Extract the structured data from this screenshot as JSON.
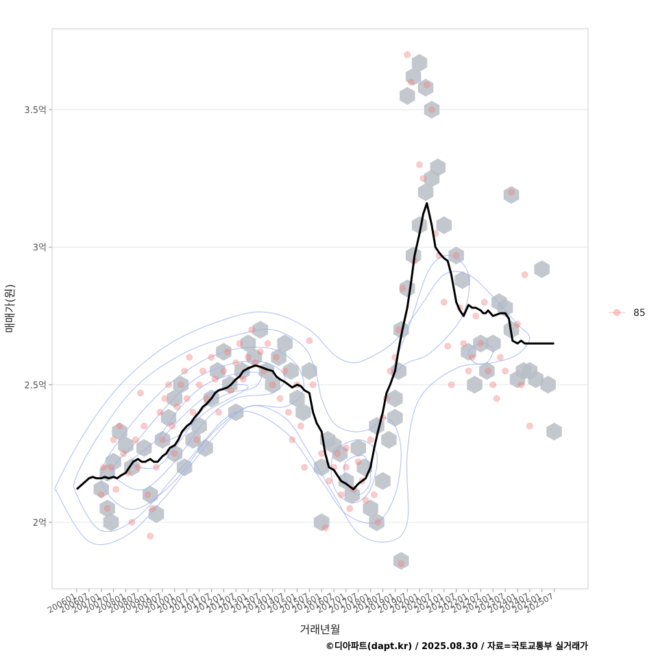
{
  "chart_data": {
    "type": "scatter",
    "xlabel": "거래년월",
    "ylabel": "매매가(원)",
    "caption": "©디아파트(dapt.kr) / 2025.08.30 / 자료=국토교통부 실거래가",
    "ylim": [
      1.77,
      3.8
    ],
    "y_ticks": [
      {
        "value": 2.0,
        "label": "2억"
      },
      {
        "value": 2.5,
        "label": "2.5억"
      },
      {
        "value": 3.0,
        "label": "3억"
      },
      {
        "value": 3.5,
        "label": "3.5억"
      }
    ],
    "x_ticks": [
      "200601",
      "200607",
      "200701",
      "200707",
      "200801",
      "200807",
      "200901",
      "200907",
      "201001",
      "201007",
      "201101",
      "201107",
      "201201",
      "201207",
      "201301",
      "201307",
      "201401",
      "201407",
      "201501",
      "201507",
      "201601",
      "201607",
      "201701",
      "201707",
      "201801",
      "201807",
      "201901",
      "201907",
      "202001",
      "202007",
      "202101",
      "202107",
      "202201",
      "202207",
      "202301",
      "202307",
      "202401",
      "202407",
      "202501",
      "202507"
    ],
    "legend": [
      {
        "label": "85",
        "color": "#f08080"
      }
    ],
    "trend_line": {
      "name": "moving average",
      "x": [
        0,
        1.0,
        1.3,
        1.6,
        2.0,
        2.3,
        2.6,
        3.0,
        3.3,
        3.6,
        4.0,
        4.3,
        4.6,
        5.0,
        5.3,
        5.6,
        6.0,
        6.3,
        6.6,
        7.0,
        7.3,
        7.6,
        8.0,
        8.3,
        8.6,
        9.0,
        9.3,
        9.6,
        10.0,
        10.3,
        10.6,
        11.0,
        11.3,
        11.6,
        12.0,
        12.3,
        12.6,
        13.0,
        13.3,
        13.6,
        14.0,
        14.3,
        14.6,
        15.0,
        15.3,
        15.6,
        16.0,
        16.3,
        16.6,
        17.0,
        17.3,
        17.6,
        18.0,
        18.3,
        18.6,
        19.0,
        19.3,
        19.6,
        20.0,
        20.3,
        20.6,
        21.0,
        21.3,
        21.6,
        22.0,
        22.3,
        22.6,
        23.0,
        23.3,
        23.6,
        24.0,
        24.3,
        24.6,
        25.0,
        25.3,
        25.6,
        26.0,
        26.3,
        26.6,
        27.0,
        27.3,
        27.6,
        28.0,
        28.3,
        28.6,
        29.0,
        29.3,
        29.6,
        30.0,
        30.3,
        30.6,
        31.0,
        31.3,
        31.6,
        32.0,
        32.3,
        32.6,
        33.0,
        33.2,
        33.4,
        33.6,
        33.8,
        34.0,
        34.3,
        34.6,
        35.0,
        35.3,
        35.6,
        36.0,
        36.3,
        36.6,
        37.0,
        37.3,
        37.6,
        38.0,
        38.3,
        38.6,
        39.0
      ],
      "y": [
        2.12,
        2.16,
        2.165,
        2.16,
        2.16,
        2.165,
        2.16,
        2.165,
        2.16,
        2.17,
        2.18,
        2.2,
        2.22,
        2.23,
        2.22,
        2.22,
        2.23,
        2.22,
        2.22,
        2.24,
        2.25,
        2.27,
        2.28,
        2.3,
        2.33,
        2.35,
        2.36,
        2.38,
        2.4,
        2.42,
        2.43,
        2.45,
        2.47,
        2.48,
        2.485,
        2.49,
        2.5,
        2.52,
        2.53,
        2.55,
        2.56,
        2.565,
        2.57,
        2.565,
        2.56,
        2.555,
        2.55,
        2.53,
        2.52,
        2.51,
        2.5,
        2.49,
        2.5,
        2.495,
        2.48,
        2.47,
        2.4,
        2.36,
        2.33,
        2.25,
        2.2,
        2.19,
        2.17,
        2.15,
        2.14,
        2.13,
        2.12,
        2.14,
        2.15,
        2.16,
        2.2,
        2.27,
        2.33,
        2.4,
        2.47,
        2.5,
        2.55,
        2.63,
        2.7,
        2.78,
        2.87,
        2.97,
        3.05,
        3.12,
        3.16,
        3.08,
        3.0,
        2.98,
        2.96,
        2.95,
        2.9,
        2.8,
        2.77,
        2.75,
        2.79,
        2.78,
        2.78,
        2.77,
        2.76,
        2.76,
        2.77,
        2.76,
        2.75,
        2.755,
        2.76,
        2.76,
        2.74,
        2.66,
        2.65,
        2.66,
        2.65,
        2.65,
        2.65,
        2.65,
        2.65,
        2.65,
        2.65,
        2.65
      ]
    },
    "hexbins": [
      [
        2.0,
        2.12
      ],
      [
        2.5,
        2.18
      ],
      [
        3.0,
        2.22
      ],
      [
        2.5,
        2.05
      ],
      [
        2.8,
        2.0
      ],
      [
        3.5,
        2.33
      ],
      [
        4.0,
        2.28
      ],
      [
        4.5,
        2.2
      ],
      [
        5.5,
        2.27
      ],
      [
        6.0,
        2.1
      ],
      [
        6.5,
        2.03
      ],
      [
        7.0,
        2.3
      ],
      [
        7.5,
        2.38
      ],
      [
        8.0,
        2.45
      ],
      [
        8.5,
        2.5
      ],
      [
        8.0,
        2.25
      ],
      [
        8.8,
        2.2
      ],
      [
        9.5,
        2.3
      ],
      [
        10.0,
        2.35
      ],
      [
        10.5,
        2.27
      ],
      [
        11.0,
        2.45
      ],
      [
        11.5,
        2.55
      ],
      [
        12.0,
        2.62
      ],
      [
        12.5,
        2.5
      ],
      [
        13.0,
        2.4
      ],
      [
        13.5,
        2.55
      ],
      [
        14.0,
        2.65
      ],
      [
        14.5,
        2.6
      ],
      [
        15.0,
        2.7
      ],
      [
        15.5,
        2.55
      ],
      [
        16.0,
        2.5
      ],
      [
        16.5,
        2.6
      ],
      [
        17.0,
        2.65
      ],
      [
        17.5,
        2.55
      ],
      [
        18.0,
        2.45
      ],
      [
        18.5,
        2.4
      ],
      [
        19.0,
        2.55
      ],
      [
        20.0,
        2.2
      ],
      [
        20.5,
        2.3
      ],
      [
        21.5,
        2.25
      ],
      [
        22.0,
        2.15
      ],
      [
        22.5,
        2.1
      ],
      [
        23.5,
        2.2
      ],
      [
        24.0,
        2.05
      ],
      [
        24.5,
        2.0
      ],
      [
        23.0,
        2.27
      ],
      [
        25.0,
        2.15
      ],
      [
        25.5,
        2.3
      ],
      [
        26.0,
        2.45
      ],
      [
        26.3,
        2.55
      ],
      [
        26.5,
        2.7
      ],
      [
        27.0,
        2.85
      ],
      [
        27.5,
        2.97
      ],
      [
        28.0,
        3.08
      ],
      [
        28.5,
        3.2
      ],
      [
        29.0,
        3.25
      ],
      [
        27.0,
        3.55
      ],
      [
        27.5,
        3.62
      ],
      [
        28.0,
        3.67
      ],
      [
        28.5,
        3.58
      ],
      [
        29.0,
        3.5
      ],
      [
        29.5,
        3.29
      ],
      [
        30.0,
        3.08
      ],
      [
        31.0,
        2.97
      ],
      [
        31.5,
        2.88
      ],
      [
        32.0,
        2.62
      ],
      [
        32.5,
        2.5
      ],
      [
        33.0,
        2.65
      ],
      [
        33.5,
        2.55
      ],
      [
        34.0,
        2.65
      ],
      [
        34.5,
        2.8
      ],
      [
        35.0,
        2.78
      ],
      [
        35.5,
        2.7
      ],
      [
        36.0,
        2.52
      ],
      [
        36.5,
        2.55
      ],
      [
        37.0,
        2.55
      ],
      [
        37.5,
        2.52
      ],
      [
        38.0,
        2.92
      ],
      [
        38.5,
        2.5
      ],
      [
        39.0,
        2.33
      ],
      [
        35.5,
        3.19
      ],
      [
        26.5,
        1.86
      ],
      [
        20.0,
        2.0
      ],
      [
        26.0,
        2.38
      ],
      [
        21.0,
        2.28
      ],
      [
        24.5,
        2.35
      ]
    ],
    "points": [
      [
        2.0,
        2.1
      ],
      [
        2.2,
        2.2
      ],
      [
        2.5,
        2.05
      ],
      [
        2.8,
        2.2
      ],
      [
        3.0,
        2.3
      ],
      [
        3.2,
        2.12
      ],
      [
        3.5,
        2.35
      ],
      [
        3.8,
        2.25
      ],
      [
        4.2,
        2.18
      ],
      [
        4.5,
        2.0
      ],
      [
        4.8,
        2.3
      ],
      [
        5.0,
        2.2
      ],
      [
        5.2,
        2.47
      ],
      [
        5.5,
        2.35
      ],
      [
        5.8,
        2.1
      ],
      [
        6.0,
        1.95
      ],
      [
        6.2,
        2.05
      ],
      [
        6.5,
        2.2
      ],
      [
        6.8,
        2.4
      ],
      [
        7.0,
        2.3
      ],
      [
        7.2,
        2.45
      ],
      [
        7.5,
        2.5
      ],
      [
        7.8,
        2.35
      ],
      [
        8.0,
        2.25
      ],
      [
        8.2,
        2.42
      ],
      [
        8.5,
        2.5
      ],
      [
        8.8,
        2.55
      ],
      [
        9.0,
        2.45
      ],
      [
        9.2,
        2.6
      ],
      [
        9.5,
        2.4
      ],
      [
        9.8,
        2.3
      ],
      [
        10.0,
        2.5
      ],
      [
        10.3,
        2.55
      ],
      [
        10.6,
        2.45
      ],
      [
        11.0,
        2.6
      ],
      [
        11.3,
        2.52
      ],
      [
        11.6,
        2.4
      ],
      [
        12.0,
        2.55
      ],
      [
        12.3,
        2.62
      ],
      [
        12.6,
        2.48
      ],
      [
        13.0,
        2.58
      ],
      [
        13.3,
        2.65
      ],
      [
        13.6,
        2.52
      ],
      [
        14.0,
        2.6
      ],
      [
        14.3,
        2.7
      ],
      [
        14.6,
        2.58
      ],
      [
        15.0,
        2.62
      ],
      [
        15.3,
        2.55
      ],
      [
        15.6,
        2.65
      ],
      [
        16.0,
        2.5
      ],
      [
        16.3,
        2.6
      ],
      [
        16.6,
        2.45
      ],
      [
        17.0,
        2.55
      ],
      [
        17.3,
        2.4
      ],
      [
        17.6,
        2.3
      ],
      [
        18.0,
        2.5
      ],
      [
        18.3,
        2.35
      ],
      [
        18.6,
        2.2
      ],
      [
        19.0,
        2.66
      ],
      [
        19.3,
        2.5
      ],
      [
        20.0,
        2.25
      ],
      [
        20.3,
        1.98
      ],
      [
        20.6,
        2.15
      ],
      [
        21.0,
        2.2
      ],
      [
        21.3,
        2.25
      ],
      [
        21.6,
        2.1
      ],
      [
        22.0,
        2.2
      ],
      [
        22.3,
        2.05
      ],
      [
        22.6,
        2.12
      ],
      [
        23.0,
        2.22
      ],
      [
        23.3,
        2.15
      ],
      [
        23.6,
        2.08
      ],
      [
        24.0,
        2.3
      ],
      [
        24.3,
        2.1
      ],
      [
        24.6,
        2.0
      ],
      [
        25.0,
        2.38
      ],
      [
        25.3,
        2.45
      ],
      [
        25.6,
        2.55
      ],
      [
        26.0,
        2.6
      ],
      [
        26.3,
        2.7
      ],
      [
        26.6,
        2.85
      ],
      [
        27.0,
        3.7
      ],
      [
        27.3,
        3.6
      ],
      [
        27.6,
        2.95
      ],
      [
        28.0,
        3.3
      ],
      [
        28.3,
        3.25
      ],
      [
        28.6,
        3.59
      ],
      [
        29.0,
        3.5
      ],
      [
        29.3,
        3.05
      ],
      [
        29.6,
        2.97
      ],
      [
        30.0,
        2.8
      ],
      [
        30.3,
        2.64
      ],
      [
        30.6,
        2.5
      ],
      [
        31.0,
        2.97
      ],
      [
        31.3,
        2.78
      ],
      [
        31.6,
        2.65
      ],
      [
        32.0,
        2.55
      ],
      [
        32.3,
        2.6
      ],
      [
        32.6,
        2.75
      ],
      [
        33.0,
        2.65
      ],
      [
        33.3,
        2.8
      ],
      [
        33.6,
        2.55
      ],
      [
        34.0,
        2.5
      ],
      [
        34.3,
        2.45
      ],
      [
        34.6,
        2.6
      ],
      [
        35.0,
        2.55
      ],
      [
        35.5,
        3.2
      ],
      [
        36.0,
        2.72
      ],
      [
        36.3,
        2.5
      ],
      [
        36.6,
        2.9
      ],
      [
        37.0,
        2.35
      ],
      [
        26.5,
        1.85
      ],
      [
        22.0,
        2.27
      ]
    ],
    "contours": [
      [
        [
          -1.5,
          2.15
        ],
        [
          1,
          2.35
        ],
        [
          4,
          2.52
        ],
        [
          8,
          2.66
        ],
        [
          13,
          2.75
        ],
        [
          16,
          2.76
        ],
        [
          19,
          2.7
        ],
        [
          21,
          2.61
        ],
        [
          22.5,
          2.58
        ],
        [
          24,
          2.6
        ],
        [
          26,
          2.66
        ],
        [
          28,
          2.78
        ],
        [
          30,
          2.9
        ],
        [
          32,
          2.9
        ],
        [
          34,
          2.82
        ],
        [
          36,
          2.72
        ],
        [
          37,
          2.67
        ],
        [
          36,
          2.61
        ],
        [
          34,
          2.58
        ],
        [
          31,
          2.56
        ],
        [
          28,
          2.45
        ],
        [
          27,
          2.25
        ],
        [
          27,
          2.0
        ],
        [
          25.5,
          1.93
        ],
        [
          23,
          1.96
        ],
        [
          21,
          2.1
        ],
        [
          19,
          2.25
        ],
        [
          17,
          2.38
        ],
        [
          14,
          2.42
        ],
        [
          11,
          2.3
        ],
        [
          7,
          2.08
        ],
        [
          4,
          1.95
        ],
        [
          1,
          1.93
        ],
        [
          -1.5,
          2.1
        ]
      ],
      [
        [
          0,
          2.17
        ],
        [
          2,
          2.33
        ],
        [
          5,
          2.5
        ],
        [
          9,
          2.62
        ],
        [
          13,
          2.68
        ],
        [
          16,
          2.7
        ],
        [
          18.5,
          2.64
        ],
        [
          19.5,
          2.55
        ],
        [
          20,
          2.45
        ],
        [
          21,
          2.36
        ],
        [
          22.5,
          2.33
        ],
        [
          24,
          2.34
        ],
        [
          25,
          2.38
        ],
        [
          26,
          2.35
        ],
        [
          26.5,
          2.25
        ],
        [
          26,
          2.1
        ],
        [
          24.5,
          2.0
        ],
        [
          22,
          2.03
        ],
        [
          20,
          2.15
        ],
        [
          17,
          2.33
        ],
        [
          13,
          2.4
        ],
        [
          9,
          2.22
        ],
        [
          5,
          2.02
        ],
        [
          2,
          1.97
        ],
        [
          0,
          2.1
        ]
      ],
      [
        [
          2,
          2.18
        ],
        [
          4,
          2.33
        ],
        [
          7,
          2.48
        ],
        [
          10,
          2.58
        ],
        [
          13,
          2.63
        ],
        [
          16,
          2.63
        ],
        [
          18,
          2.57
        ],
        [
          18.5,
          2.48
        ],
        [
          17,
          2.42
        ],
        [
          14,
          2.42
        ],
        [
          11,
          2.32
        ],
        [
          8,
          2.15
        ],
        [
          5,
          2.05
        ],
        [
          3,
          2.08
        ]
      ],
      [
        [
          3,
          2.2
        ],
        [
          5,
          2.3
        ],
        [
          7.5,
          2.43
        ],
        [
          10,
          2.53
        ],
        [
          13,
          2.58
        ],
        [
          15.5,
          2.58
        ],
        [
          17,
          2.53
        ],
        [
          16,
          2.47
        ],
        [
          13,
          2.45
        ],
        [
          10.5,
          2.37
        ],
        [
          8,
          2.22
        ],
        [
          5.5,
          2.12
        ],
        [
          3.5,
          2.15
        ]
      ],
      [
        [
          4.5,
          2.22
        ],
        [
          6.5,
          2.3
        ],
        [
          8.5,
          2.42
        ],
        [
          10.5,
          2.5
        ],
        [
          13,
          2.54
        ],
        [
          15,
          2.54
        ],
        [
          14.5,
          2.49
        ],
        [
          12.5,
          2.47
        ],
        [
          10.5,
          2.42
        ],
        [
          8.5,
          2.3
        ],
        [
          6.5,
          2.2
        ]
      ],
      [
        [
          7,
          2.3
        ],
        [
          9,
          2.4
        ],
        [
          11,
          2.47
        ],
        [
          13,
          2.5
        ],
        [
          14,
          2.49
        ],
        [
          12.5,
          2.45
        ],
        [
          10.5,
          2.4
        ],
        [
          8.5,
          2.32
        ]
      ],
      [
        [
          21,
          2.25
        ],
        [
          23,
          2.3
        ],
        [
          24.5,
          2.25
        ],
        [
          24,
          2.12
        ],
        [
          22.5,
          2.07
        ],
        [
          21,
          2.13
        ]
      ],
      [
        [
          22,
          2.22
        ],
        [
          23.5,
          2.24
        ],
        [
          24,
          2.15
        ],
        [
          23,
          2.1
        ],
        [
          22,
          2.15
        ]
      ],
      [
        [
          25.8,
          2.55
        ],
        [
          27.2,
          2.72
        ],
        [
          28.8,
          2.92
        ],
        [
          30.5,
          2.97
        ],
        [
          32,
          2.9
        ],
        [
          31.5,
          2.75
        ],
        [
          29,
          2.62
        ],
        [
          27,
          2.58
        ]
      ],
      [
        [
          32,
          2.62
        ],
        [
          33,
          2.65
        ],
        [
          34,
          2.63
        ],
        [
          33.5,
          2.58
        ],
        [
          32.5,
          2.58
        ]
      ]
    ]
  }
}
